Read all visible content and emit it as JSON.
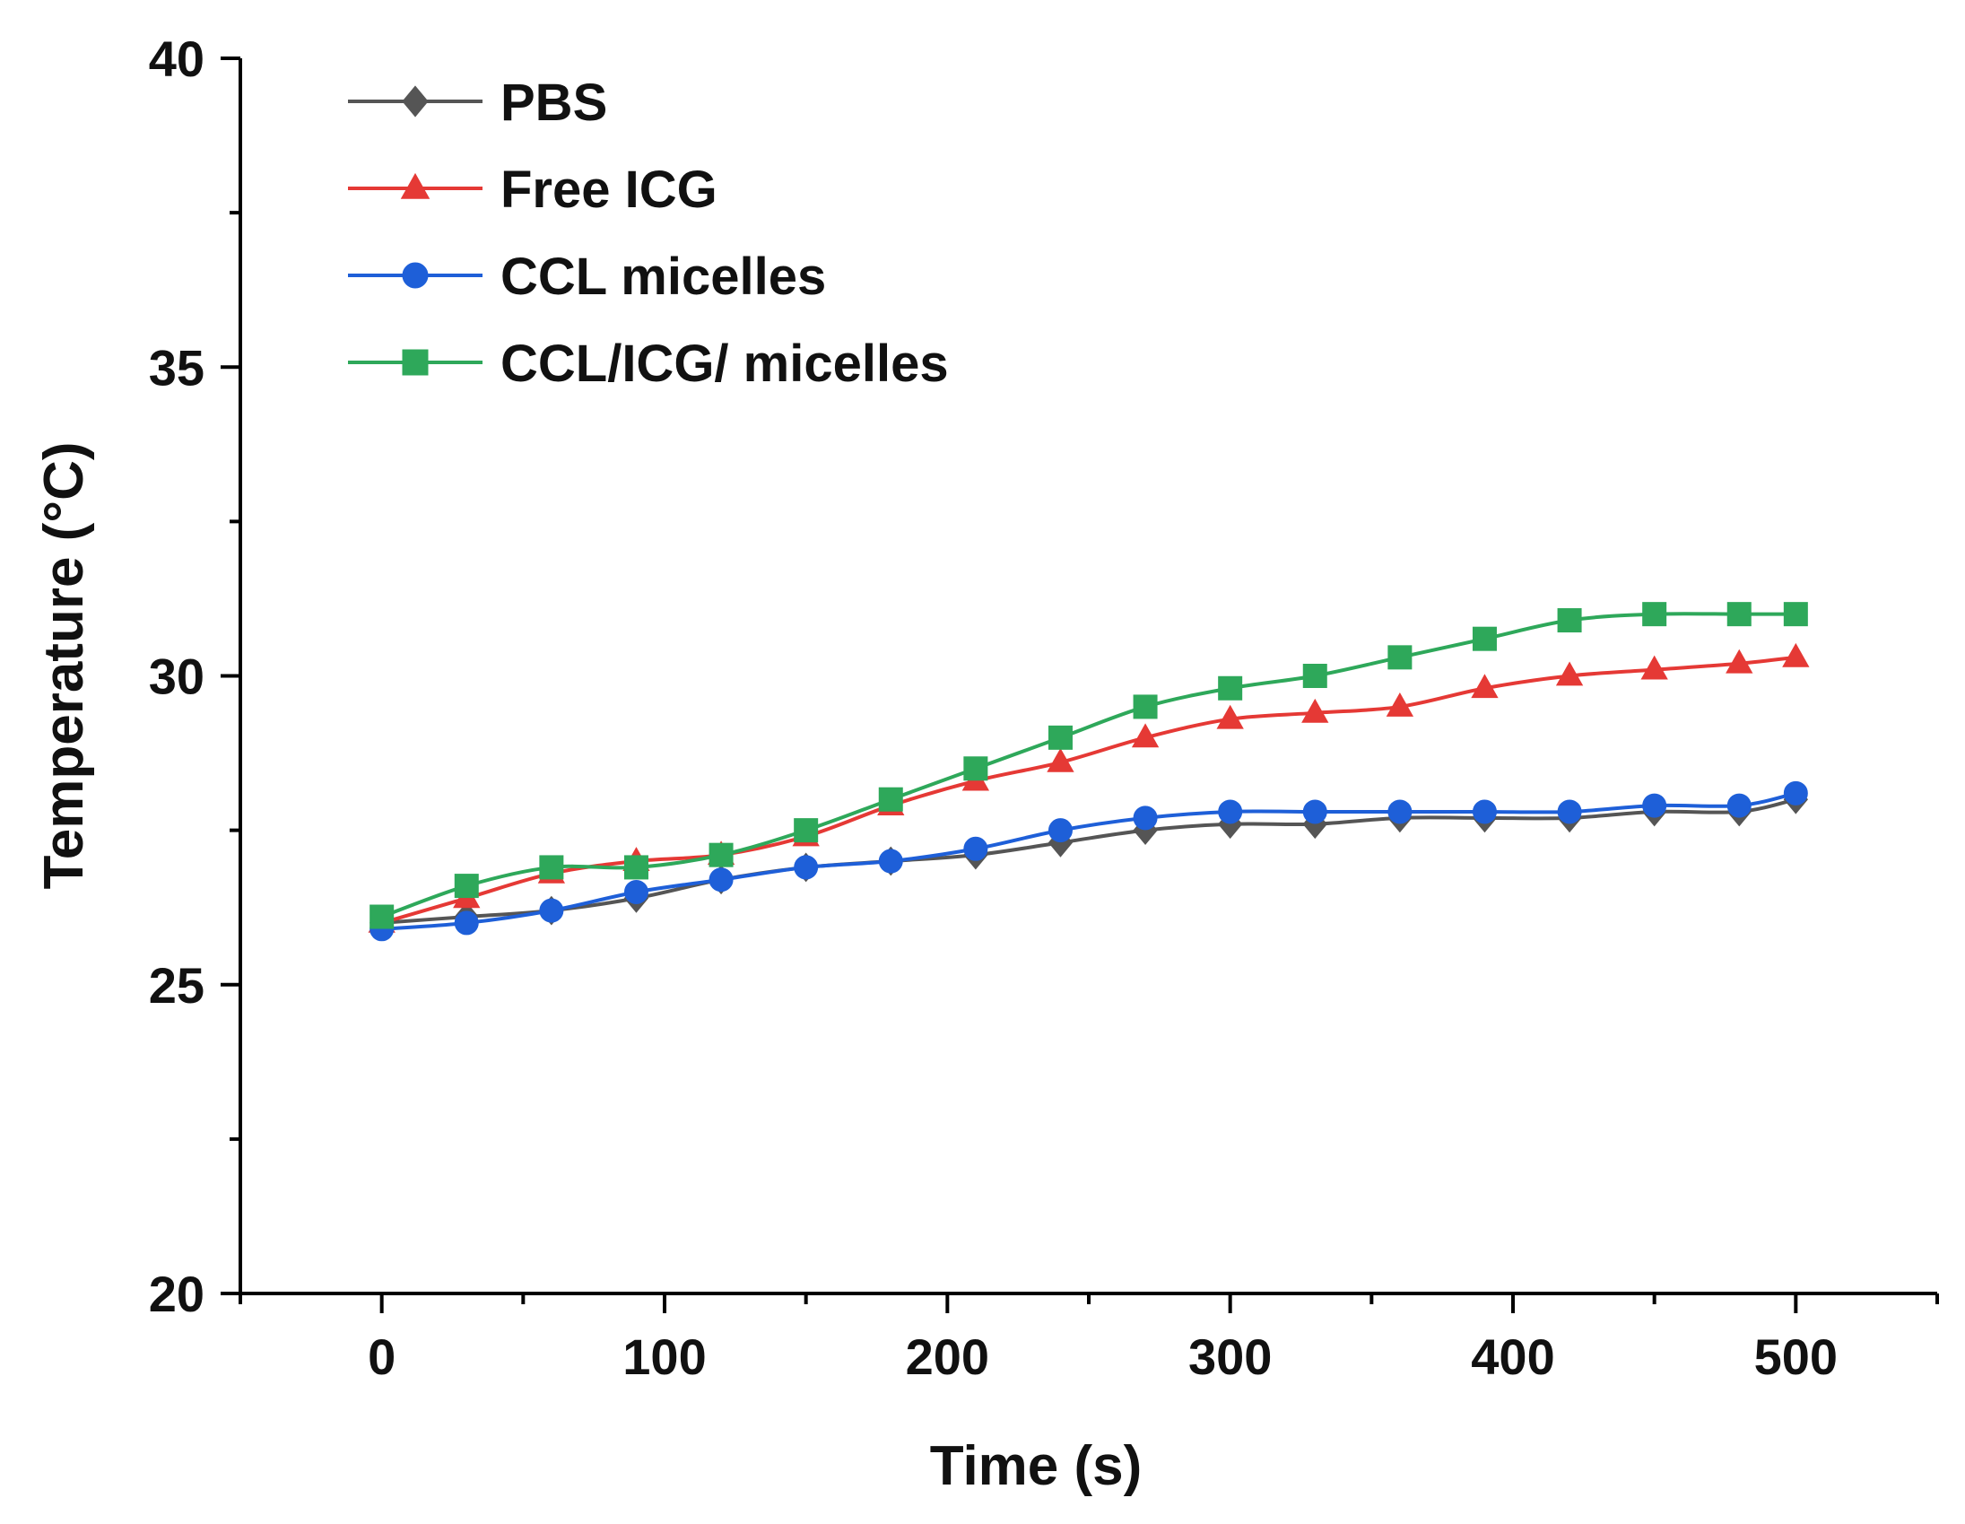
{
  "chart_data": {
    "type": "line",
    "title": "",
    "xlabel": "Time (s)",
    "ylabel": "Temperature (°C)",
    "xlim": [
      -50,
      550
    ],
    "ylim": [
      20,
      40
    ],
    "xticks": [
      0,
      100,
      200,
      300,
      400,
      500
    ],
    "xtick_labels": [
      "0",
      "100",
      "200",
      "300",
      "400",
      "500"
    ],
    "yticks": [
      20,
      25,
      30,
      35,
      40
    ],
    "ytick_labels": [
      "20",
      "25",
      "30",
      "35",
      "40"
    ],
    "grid": false,
    "legend_position": "top-left",
    "x": [
      0,
      30,
      60,
      90,
      120,
      150,
      180,
      210,
      240,
      270,
      300,
      330,
      360,
      390,
      420,
      450,
      480,
      500
    ],
    "series": [
      {
        "name": "PBS",
        "color": "#555555",
        "marker": "diamond",
        "values": [
          26.0,
          26.1,
          26.2,
          26.4,
          26.7,
          26.9,
          27.0,
          27.1,
          27.3,
          27.5,
          27.6,
          27.6,
          27.7,
          27.7,
          27.7,
          27.8,
          27.8,
          28.0
        ]
      },
      {
        "name": "Free ICG",
        "color": "#e53935",
        "marker": "triangle",
        "values": [
          26.0,
          26.4,
          26.8,
          27.0,
          27.1,
          27.4,
          27.9,
          28.3,
          28.6,
          29.0,
          29.3,
          29.4,
          29.5,
          29.8,
          30.0,
          30.1,
          30.2,
          30.3
        ]
      },
      {
        "name": "CCL micelles",
        "color": "#1e5fd8",
        "marker": "circle",
        "values": [
          25.9,
          26.0,
          26.2,
          26.5,
          26.7,
          26.9,
          27.0,
          27.2,
          27.5,
          27.7,
          27.8,
          27.8,
          27.8,
          27.8,
          27.8,
          27.9,
          27.9,
          28.1
        ]
      },
      {
        "name": "CCL/ICG/ micelles",
        "color": "#2ea85a",
        "marker": "square",
        "values": [
          26.1,
          26.6,
          26.9,
          26.9,
          27.1,
          27.5,
          28.0,
          28.5,
          29.0,
          29.5,
          29.8,
          30.0,
          30.3,
          30.6,
          30.9,
          31.0,
          31.0,
          31.0
        ]
      }
    ]
  }
}
